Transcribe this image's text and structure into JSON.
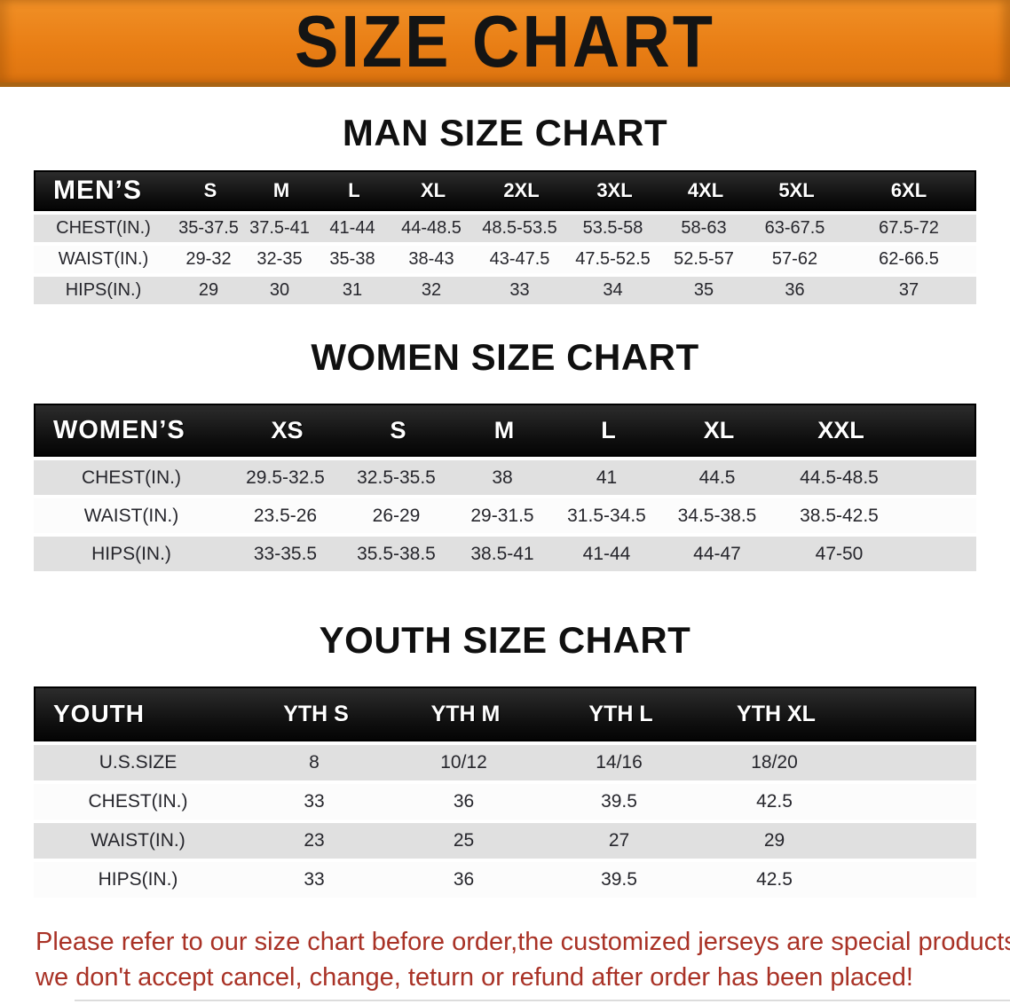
{
  "banner": {
    "title": "SIZE CHART",
    "bg_color": "#E87D14",
    "title_color": "#141414"
  },
  "sections": [
    {
      "id": "men",
      "heading": "MAN SIZE CHART",
      "table": {
        "header_label": "MEN’S",
        "columns": [
          "S",
          "M",
          "L",
          "XL",
          "2XL",
          "3XL",
          "4XL",
          "5XL",
          "6XL"
        ],
        "rows": [
          {
            "label": "CHEST(IN.)",
            "values": [
              "35-37.5",
              "37.5-41",
              "41-44",
              "44-48.5",
              "48.5-53.5",
              "53.5-58",
              "58-63",
              "63-67.5",
              "67.5-72"
            ]
          },
          {
            "label": "WAIST(IN.)",
            "values": [
              "29-32",
              "32-35",
              "35-38",
              "38-43",
              "43-47.5",
              "47.5-52.5",
              "52.5-57",
              "57-62",
              "62-66.5"
            ]
          },
          {
            "label": "HIPS(IN.)",
            "values": [
              "29",
              "30",
              "31",
              "32",
              "33",
              "34",
              "35",
              "36",
              "37"
            ]
          }
        ]
      }
    },
    {
      "id": "women",
      "heading": "WOMEN SIZE CHART",
      "table": {
        "header_label": "WOMEN’S",
        "columns": [
          "XS",
          "S",
          "M",
          "L",
          "XL",
          "XXL"
        ],
        "rows": [
          {
            "label": "CHEST(IN.)",
            "values": [
              "29.5-32.5",
              "32.5-35.5",
              "38",
              "41",
              "44.5",
              "44.5-48.5"
            ]
          },
          {
            "label": "WAIST(IN.)",
            "values": [
              "23.5-26",
              "26-29",
              "29-31.5",
              "31.5-34.5",
              "34.5-38.5",
              "38.5-42.5"
            ]
          },
          {
            "label": "HIPS(IN.)",
            "values": [
              "33-35.5",
              "35.5-38.5",
              "38.5-41",
              "41-44",
              "44-47",
              "47-50"
            ]
          }
        ]
      }
    },
    {
      "id": "youth",
      "heading": "YOUTH SIZE CHART",
      "table": {
        "header_label": "YOUTH",
        "columns": [
          "YTH S",
          "YTH M",
          "YTH L",
          "YTH XL"
        ],
        "rows": [
          {
            "label": "U.S.SIZE",
            "values": [
              "8",
              "10/12",
              "14/16",
              "18/20"
            ]
          },
          {
            "label": "CHEST(IN.)",
            "values": [
              "33",
              "36",
              "39.5",
              "42.5"
            ]
          },
          {
            "label": "WAIST(IN.)",
            "values": [
              "23",
              "25",
              "27",
              "29"
            ]
          },
          {
            "label": "HIPS(IN.)",
            "values": [
              "33",
              "36",
              "39.5",
              "42.5"
            ]
          }
        ]
      }
    }
  ],
  "footer_note": {
    "line1": "Please refer to our size chart before order,the customized jerseys are special products,",
    "line2": "we don't accept cancel, change, teturn or refund after order has been placed!",
    "color": "#A93226"
  }
}
